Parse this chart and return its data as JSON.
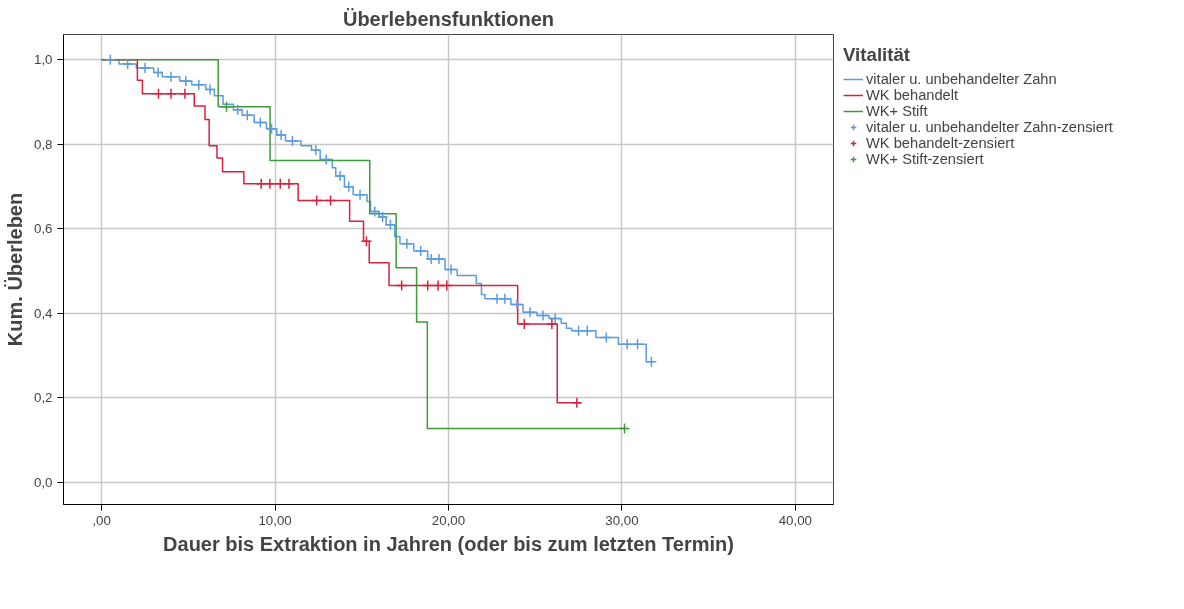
{
  "chart_data": {
    "type": "step",
    "title": "Überlebensfunktionen",
    "xlabel": "Dauer bis Extraktion in Jahren (oder bis zum letzten Termin)",
    "ylabel": "Kum. Überleben",
    "legend_title": "Vitalität",
    "xlim": [
      -2.2,
      42.2
    ],
    "ylim": [
      -0.052,
      1.06
    ],
    "xticks": [
      {
        "value": 0,
        "label": ",00"
      },
      {
        "value": 10,
        "label": "10,00"
      },
      {
        "value": 20,
        "label": "20,00"
      },
      {
        "value": 30,
        "label": "30,00"
      },
      {
        "value": 40,
        "label": "40,00"
      }
    ],
    "yticks": [
      {
        "value": 0,
        "label": "0,0"
      },
      {
        "value": 0.2,
        "label": "0,2"
      },
      {
        "value": 0.4,
        "label": "0,4"
      },
      {
        "value": 0.6,
        "label": "0,6"
      },
      {
        "value": 0.8,
        "label": "0,8"
      },
      {
        "value": 1.0,
        "label": "1,0"
      }
    ],
    "grid": true,
    "legend": "top right",
    "series": [
      {
        "name": "vitaler u. unbehandelter Zahn",
        "color": "#5b9be0",
        "x": [
          0,
          1.0,
          2.0,
          3.0,
          3.5,
          4.5,
          5.2,
          6.0,
          6.5,
          7.0,
          7.6,
          8.1,
          8.8,
          9.5,
          10.1,
          10.6,
          11.5,
          12.1,
          12.6,
          13.3,
          13.5,
          14.0,
          14.5,
          15.3,
          15.5,
          16.0,
          16.4,
          16.9,
          17.2,
          18.0,
          18.8,
          19.8,
          20.5,
          21.6,
          21.9,
          22.1,
          23.6,
          24.3,
          25.1,
          25.8,
          26.5,
          26.8,
          27.1,
          28.5,
          29.8,
          31.4,
          31.8
        ],
        "values": [
          1.0,
          0.99,
          0.981,
          0.97,
          0.96,
          0.95,
          0.941,
          0.93,
          0.915,
          0.895,
          0.882,
          0.869,
          0.852,
          0.837,
          0.822,
          0.808,
          0.797,
          0.786,
          0.764,
          0.745,
          0.725,
          0.7,
          0.681,
          0.665,
          0.641,
          0.628,
          0.61,
          0.582,
          0.565,
          0.548,
          0.529,
          0.504,
          0.49,
          0.471,
          0.445,
          0.435,
          0.421,
          0.403,
          0.395,
          0.388,
          0.377,
          0.365,
          0.359,
          0.343,
          0.327,
          0.286,
          0.286
        ]
      },
      {
        "name": "WK behandelt",
        "color": "#d8203f",
        "x": [
          0,
          2.06,
          2.35,
          5.34,
          5.96,
          6.2,
          6.65,
          6.97,
          8.2,
          11.33,
          14.3,
          15.1,
          15.43,
          16.57,
          23.99,
          26.27,
          27.6
        ],
        "values": [
          1.0,
          0.952,
          0.92,
          0.891,
          0.859,
          0.797,
          0.768,
          0.735,
          0.707,
          0.667,
          0.618,
          0.571,
          0.52,
          0.466,
          0.375,
          0.189,
          0.189
        ]
      },
      {
        "name": "WK+ Stift",
        "color": "#3f9a3a",
        "x": [
          0,
          6.72,
          9.71,
          15.46,
          16.98,
          18.16,
          18.78,
          30.3
        ],
        "values": [
          1.0,
          0.889,
          0.762,
          0.636,
          0.508,
          0.38,
          0.128,
          0.128
        ]
      },
      {
        "name": "vitaler u. unbehandelter Zahn-zensiert",
        "type": "scatter",
        "marker": "cross",
        "color": "#5b9be0",
        "x": [
          0.5,
          1.5,
          2.5,
          3.25,
          4.0,
          4.85,
          5.6,
          6.25,
          7.85,
          8.4,
          9.15,
          9.8,
          10.35,
          11.0,
          12.35,
          12.95,
          13.75,
          14.25,
          14.9,
          15.75,
          16.2,
          16.65,
          17.6,
          18.4,
          19.0,
          19.45,
          20.15,
          22.8,
          23.25,
          23.95,
          24.7,
          25.45,
          26.15,
          27.5,
          28.0,
          29.1,
          30.3,
          30.9,
          31.7
        ],
        "values": [
          1.0,
          0.99,
          0.981,
          0.97,
          0.96,
          0.95,
          0.941,
          0.93,
          0.882,
          0.869,
          0.852,
          0.837,
          0.822,
          0.808,
          0.786,
          0.764,
          0.725,
          0.7,
          0.681,
          0.641,
          0.628,
          0.61,
          0.565,
          0.548,
          0.529,
          0.529,
          0.504,
          0.435,
          0.435,
          0.421,
          0.403,
          0.395,
          0.388,
          0.359,
          0.359,
          0.343,
          0.327,
          0.327,
          0.286
        ]
      },
      {
        "name": "WK behandelt-zensiert",
        "type": "scatter",
        "marker": "cross",
        "color": "#d8203f",
        "x": [
          3.28,
          4.0,
          4.8,
          9.2,
          9.7,
          10.3,
          10.8,
          12.4,
          13.2,
          15.27,
          17.3,
          18.8,
          19.4,
          19.9,
          24.37,
          25.96,
          27.4
        ],
        "values": [
          0.92,
          0.92,
          0.92,
          0.707,
          0.707,
          0.707,
          0.707,
          0.667,
          0.667,
          0.571,
          0.466,
          0.466,
          0.466,
          0.466,
          0.375,
          0.375,
          0.189
        ]
      },
      {
        "name": "WK+ Stift-zensiert",
        "type": "scatter",
        "marker": "cross",
        "color": "#3f9a3a",
        "x": [
          7.2,
          30.15
        ],
        "values": [
          0.889,
          0.128
        ]
      }
    ]
  }
}
